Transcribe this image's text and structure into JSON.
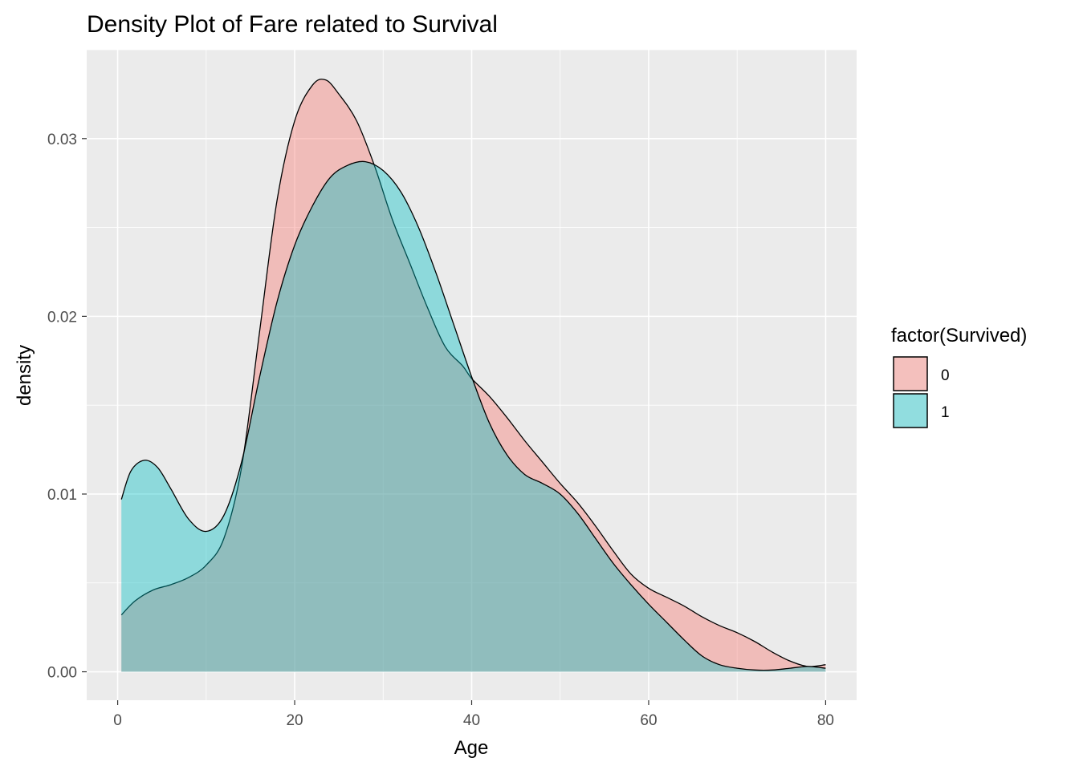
{
  "chart_data": {
    "type": "area",
    "title": "Density Plot of Fare related to Survival",
    "xlabel": "Age",
    "ylabel": "density",
    "xlim": [
      -3.5,
      83.5
    ],
    "ylim": [
      -0.0016,
      0.035
    ],
    "x_ticks": [
      0,
      20,
      40,
      60,
      80
    ],
    "x_tick_labels": [
      "0",
      "20",
      "40",
      "60",
      "80"
    ],
    "y_ticks": [
      0.0,
      0.01,
      0.02,
      0.03
    ],
    "y_tick_labels": [
      "0.00",
      "0.01",
      "0.02",
      "0.03"
    ],
    "grid": true,
    "legend": {
      "title": "factor(Survived)",
      "position": "right",
      "entries": [
        {
          "label": "0",
          "color": "#F8766D"
        },
        {
          "label": "1",
          "color": "#00BFC4"
        }
      ]
    },
    "series": [
      {
        "name": "0",
        "color": "#F8766D",
        "x": [
          0.42,
          2,
          4,
          6,
          8,
          10,
          12,
          14,
          16,
          18,
          20,
          22,
          23.5,
          25,
          27,
          29,
          31,
          33,
          35,
          37,
          39,
          40,
          42,
          44,
          46,
          48,
          50,
          52,
          54,
          56,
          58,
          60,
          62,
          64,
          66,
          68,
          70,
          72,
          74,
          76,
          78,
          80
        ],
        "y": [
          0.0032,
          0.004,
          0.0046,
          0.0049,
          0.0053,
          0.006,
          0.0075,
          0.0115,
          0.019,
          0.0265,
          0.031,
          0.033,
          0.0333,
          0.0325,
          0.031,
          0.0285,
          0.0255,
          0.023,
          0.0205,
          0.0183,
          0.0172,
          0.0165,
          0.0155,
          0.0143,
          0.013,
          0.0118,
          0.0106,
          0.0095,
          0.0082,
          0.0068,
          0.0055,
          0.0047,
          0.0042,
          0.0037,
          0.0031,
          0.0026,
          0.0022,
          0.0017,
          0.0011,
          0.0006,
          0.0003,
          0.0004
        ]
      },
      {
        "name": "1",
        "color": "#00BFC4",
        "x": [
          0.42,
          1.5,
          3,
          4.5,
          6,
          8,
          10,
          12,
          14,
          16,
          18,
          20,
          22,
          24,
          26,
          28,
          30,
          32,
          34,
          36,
          38,
          40,
          42,
          44,
          46,
          48,
          50,
          52,
          54,
          56,
          58,
          60,
          62,
          64,
          66,
          68,
          70,
          72,
          74,
          76,
          78,
          80
        ],
        "y": [
          0.0097,
          0.0113,
          0.0119,
          0.0115,
          0.0103,
          0.0086,
          0.0079,
          0.0088,
          0.0118,
          0.0165,
          0.0208,
          0.024,
          0.0262,
          0.0278,
          0.0285,
          0.0287,
          0.0282,
          0.027,
          0.025,
          0.0224,
          0.0195,
          0.0166,
          0.014,
          0.0122,
          0.0111,
          0.0106,
          0.01,
          0.0089,
          0.0075,
          0.0061,
          0.0049,
          0.0038,
          0.0028,
          0.0018,
          0.0009,
          0.0004,
          0.0002,
          0.0001,
          0.0001,
          0.0002,
          0.0003,
          0.0002
        ]
      }
    ]
  }
}
